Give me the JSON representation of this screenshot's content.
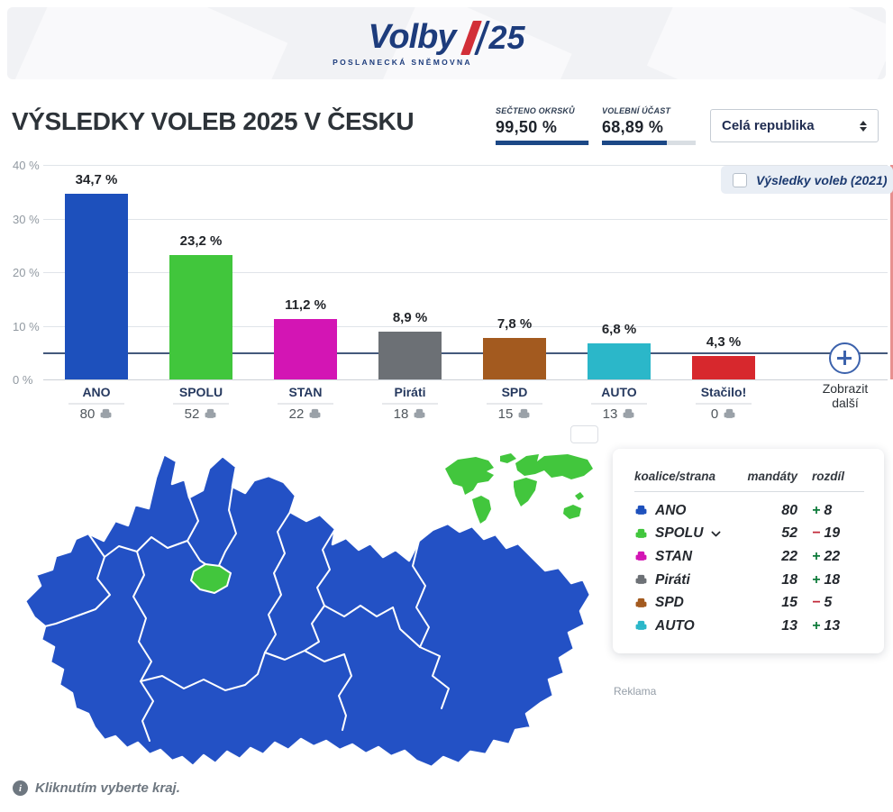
{
  "header": {
    "logo_text": "Volby",
    "logo_year": "25",
    "logo_subtitle": "POSLANECKÁ SNĚMOVNA"
  },
  "page_title": "VÝSLEDKY VOLEB 2025 V ČESKU",
  "stats": [
    {
      "label": "SEČTENO OKRSKŮ",
      "value": "99,50 %",
      "percent": 99.5
    },
    {
      "label": "VOLEBNÍ ÚČAST",
      "value": "68,89 %",
      "percent": 68.89
    }
  ],
  "region_select": {
    "value": "Celá republika"
  },
  "legend_2021": {
    "label": "Výsledky voleb (2021)",
    "checked": false
  },
  "chart_data": {
    "type": "bar",
    "title": "Výsledky voleb 2025 v Česku",
    "categories": [
      "ANO",
      "SPOLU",
      "STAN",
      "Piráti",
      "SPD",
      "AUTO",
      "Stačilo!"
    ],
    "values": [
      34.7,
      23.2,
      11.2,
      8.9,
      7.8,
      6.8,
      4.3
    ],
    "value_labels": [
      "34,7 %",
      "23,2 %",
      "11,2 %",
      "8,9 %",
      "7,8 %",
      "6,8 %",
      "4,3 %"
    ],
    "seats": [
      80,
      52,
      22,
      18,
      15,
      13,
      0
    ],
    "bar_colors": [
      "#1d50bc",
      "#41c63c",
      "#d315b4",
      "#6c7075",
      "#a35a1f",
      "#2bb7c9",
      "#d7282d"
    ],
    "xlabel": "",
    "ylabel": "",
    "ylim": [
      0,
      40
    ],
    "yticks": [
      {
        "label": "40 %",
        "value": 40
      },
      {
        "label": "30 %",
        "value": 30
      },
      {
        "label": "20 %",
        "value": 20
      },
      {
        "label": "10 %",
        "value": 10
      },
      {
        "label": "0 %",
        "value": 0
      }
    ],
    "threshold_pct": 5,
    "grid": true,
    "legend_position": "top-right"
  },
  "show_more_label": "Zobrazit další",
  "mandates_table": {
    "headers": [
      "koalice/strana",
      "mandáty",
      "rozdíl"
    ],
    "rows": [
      {
        "party": "ANO",
        "color": "#1d50bc",
        "mandates": "80",
        "diff_sign": "+",
        "diff_value": "8",
        "diff_dir": "up",
        "expandable": false
      },
      {
        "party": "SPOLU",
        "color": "#41c63c",
        "mandates": "52",
        "diff_sign": "−",
        "diff_value": "19",
        "diff_dir": "down",
        "expandable": true
      },
      {
        "party": "STAN",
        "color": "#d315b4",
        "mandates": "22",
        "diff_sign": "+",
        "diff_value": "22",
        "diff_dir": "up",
        "expandable": false
      },
      {
        "party": "Piráti",
        "color": "#6c7075",
        "mandates": "18",
        "diff_sign": "+",
        "diff_value": "18",
        "diff_dir": "up",
        "expandable": false
      },
      {
        "party": "SPD",
        "color": "#a35a1f",
        "mandates": "15",
        "diff_sign": "−",
        "diff_value": "5",
        "diff_dir": "down",
        "expandable": false
      },
      {
        "party": "AUTO",
        "color": "#2bb7c9",
        "mandates": "13",
        "diff_sign": "+",
        "diff_value": "13",
        "diff_dir": "up",
        "expandable": false
      }
    ]
  },
  "ad_label": "Reklama",
  "map_hint": "Kliknutím vyberte kraj.",
  "colors": {
    "map_fill": "#2351c5",
    "map_highlight": "#42c63d",
    "diff_up": "#0e7a3a",
    "diff_down": "#c2293a",
    "accent_navy": "#1d3c7c",
    "threshold_line": "#44597c",
    "seat_icon_gray": "#9aa1a8"
  }
}
